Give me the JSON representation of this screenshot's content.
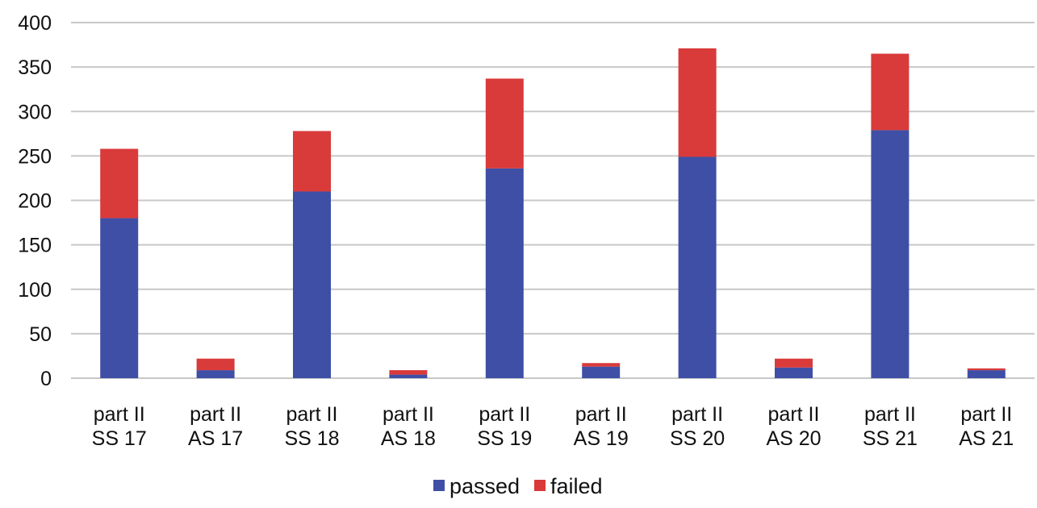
{
  "chart_data": {
    "type": "bar",
    "stacked": true,
    "categories": [
      [
        "part II",
        "SS 17"
      ],
      [
        "part II",
        "AS 17"
      ],
      [
        "part II",
        "SS 18"
      ],
      [
        "part II",
        "AS 18"
      ],
      [
        "part II",
        "SS 19"
      ],
      [
        "part II",
        "AS 19"
      ],
      [
        "part II",
        "SS 20"
      ],
      [
        "part II",
        "AS 20"
      ],
      [
        "part II",
        "SS 21"
      ],
      [
        "part II",
        "AS 21"
      ]
    ],
    "series": [
      {
        "name": "passed",
        "color": "#3f4fa6",
        "values": [
          180,
          9,
          210,
          4,
          236,
          13,
          249,
          12,
          279,
          9
        ]
      },
      {
        "name": "failed",
        "color": "#d93a3a",
        "values": [
          78,
          13,
          68,
          5,
          101,
          4,
          122,
          10,
          86,
          2
        ]
      }
    ],
    "ylim": [
      0,
      400
    ],
    "yticks": [
      0,
      50,
      100,
      150,
      200,
      250,
      300,
      350,
      400
    ],
    "grid": true,
    "legend_position": "bottom-center",
    "title": "",
    "xlabel": "",
    "ylabel": ""
  }
}
